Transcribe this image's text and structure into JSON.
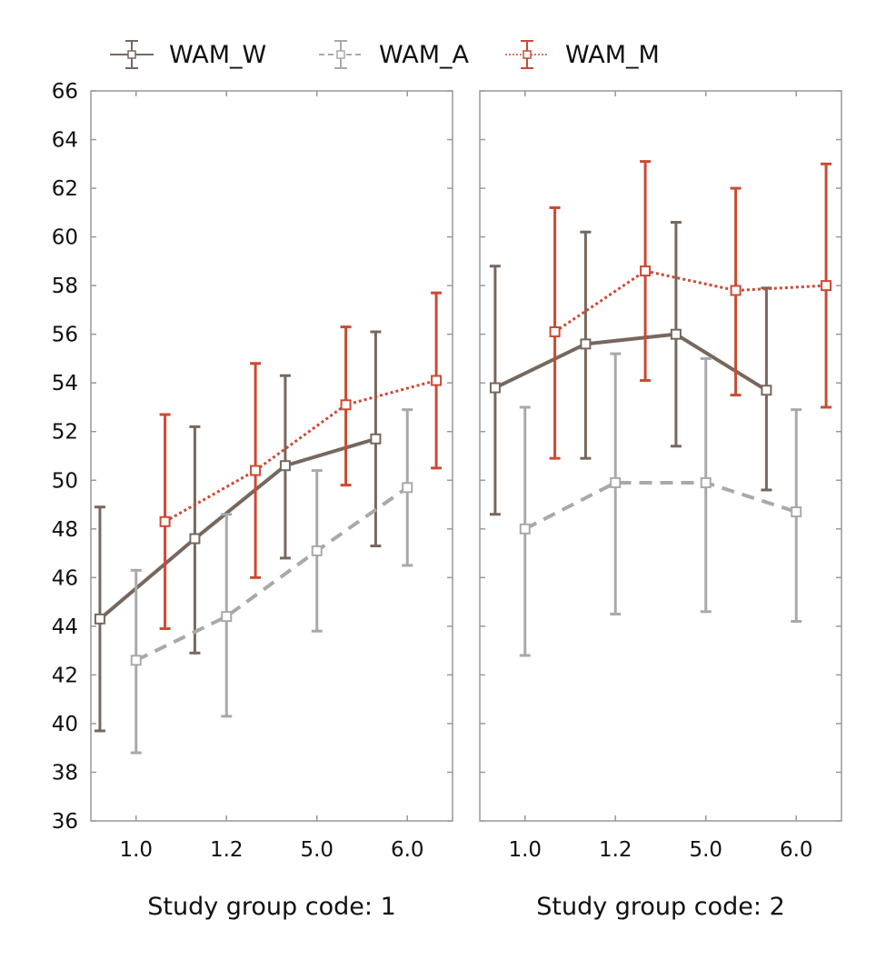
{
  "chart_data": {
    "type": "line",
    "title": "",
    "ylabel": "",
    "xlabel": "",
    "ylim": [
      36,
      66
    ],
    "yticks": [
      36,
      38,
      40,
      42,
      44,
      46,
      48,
      50,
      52,
      54,
      56,
      58,
      60,
      62,
      64,
      66
    ],
    "categories": [
      "1.0",
      "1.2",
      "5.0",
      "6.0"
    ],
    "error_bars": true,
    "legend_position": "top",
    "series_styles": [
      {
        "name": "WAM_W",
        "color": "#76685e",
        "line": "solid"
      },
      {
        "name": "WAM_A",
        "color": "#a9a9ac",
        "line": "dashed"
      },
      {
        "name": "WAM_M",
        "color": "#cc4a33",
        "line": "dotted"
      }
    ],
    "panels": [
      {
        "label": "Study group code: 1",
        "series": [
          {
            "name": "WAM_W",
            "x": [
              0.6,
              1.65,
              2.65,
              3.65
            ],
            "mean": [
              44.3,
              47.6,
              50.6,
              51.7
            ],
            "low": [
              39.7,
              42.9,
              46.8,
              47.3
            ],
            "high": [
              48.9,
              52.2,
              54.3,
              56.1
            ]
          },
          {
            "name": "WAM_A",
            "x": [
              1.0,
              2.0,
              3.0,
              4.0
            ],
            "mean": [
              42.6,
              44.4,
              47.1,
              49.7
            ],
            "low": [
              38.8,
              40.3,
              43.8,
              46.5
            ],
            "high": [
              46.3,
              48.6,
              50.4,
              52.9
            ]
          },
          {
            "name": "WAM_M",
            "x": [
              1.32,
              2.32,
              3.32,
              4.32
            ],
            "mean": [
              48.3,
              50.4,
              53.1,
              54.1
            ],
            "low": [
              43.9,
              46.0,
              49.8,
              50.5
            ],
            "high": [
              52.7,
              54.8,
              56.3,
              57.7
            ]
          }
        ]
      },
      {
        "label": "Study group code: 2",
        "series": [
          {
            "name": "WAM_W",
            "x": [
              0.67,
              1.67,
              2.67,
              3.67
            ],
            "mean": [
              53.8,
              55.6,
              56.0,
              53.7
            ],
            "low": [
              48.6,
              50.9,
              51.4,
              49.6
            ],
            "high": [
              58.8,
              60.2,
              60.6,
              57.9
            ]
          },
          {
            "name": "WAM_A",
            "x": [
              1.0,
              2.0,
              3.0,
              4.0
            ],
            "mean": [
              48.0,
              49.9,
              49.9,
              48.7
            ],
            "low": [
              42.8,
              44.5,
              44.6,
              44.2
            ],
            "high": [
              53.0,
              55.2,
              55.0,
              52.9
            ]
          },
          {
            "name": "WAM_M",
            "x": [
              1.33,
              2.33,
              3.33,
              4.33
            ],
            "mean": [
              56.1,
              58.6,
              57.8,
              58.0
            ],
            "low": [
              50.9,
              54.1,
              53.5,
              53.0
            ],
            "high": [
              61.2,
              63.1,
              62.0,
              63.0
            ]
          }
        ]
      }
    ]
  }
}
